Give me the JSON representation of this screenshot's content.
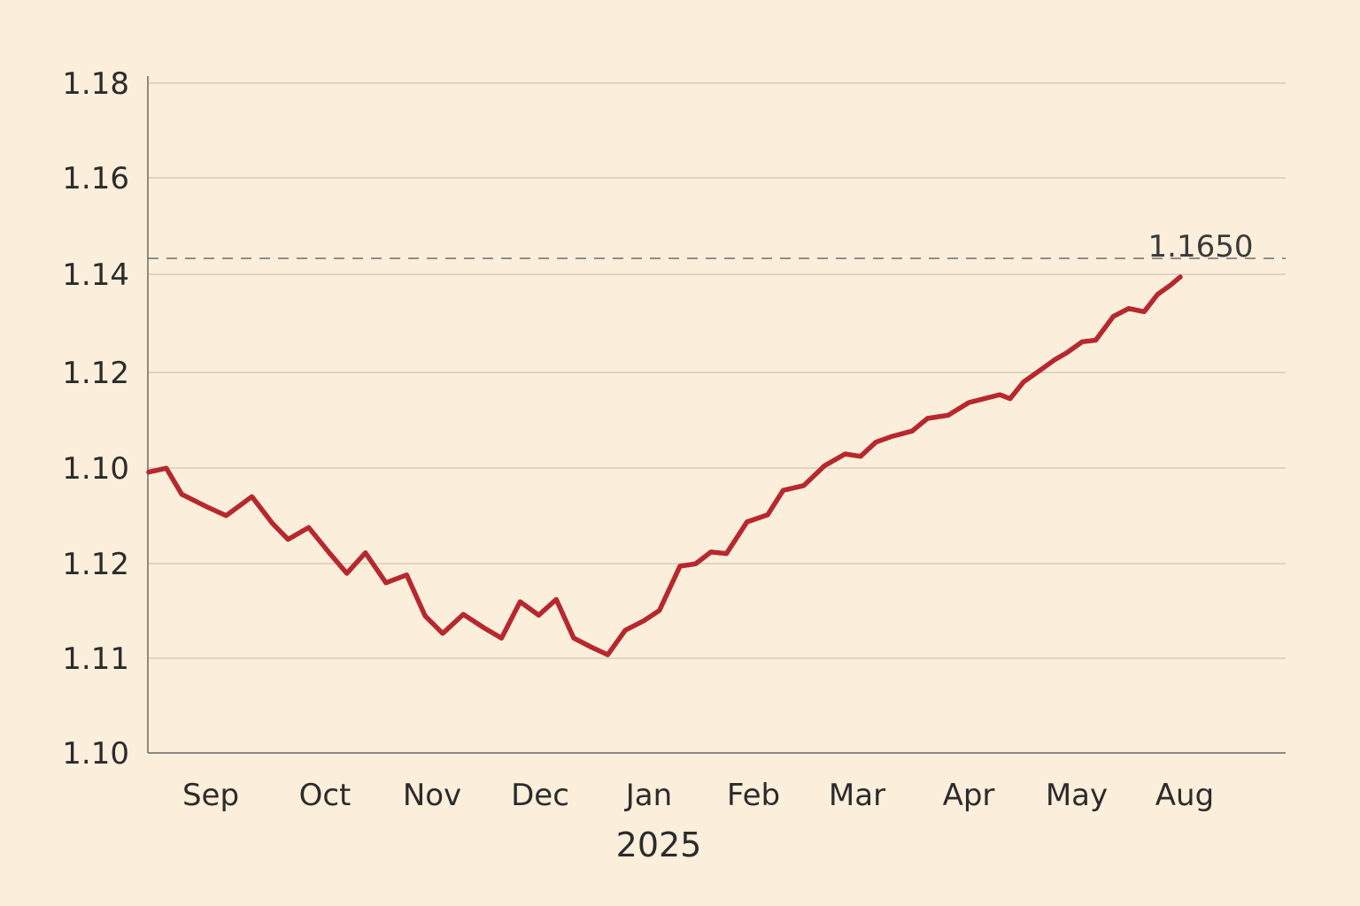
{
  "chart_data": {
    "type": "line",
    "title": "",
    "xlabel": "",
    "ylabel": "",
    "colors": {
      "background": "#fbeedb",
      "line": "#b7282e",
      "grid": "#cfc6b4",
      "axis": "#6b6b6b",
      "reference": "#6e6e6e"
    },
    "grid": true,
    "legend": "none",
    "y_ticks": [
      {
        "label": "1.18"
      },
      {
        "label": "1.16"
      },
      {
        "label": "1.14"
      },
      {
        "label": "1.12"
      },
      {
        "label": "1.10"
      },
      {
        "label": "1.12"
      },
      {
        "label": "1.11"
      },
      {
        "label": "1.10"
      }
    ],
    "x_ticks": [
      {
        "label": "Sep"
      },
      {
        "label": "Oct"
      },
      {
        "label": "Nov"
      },
      {
        "label": "Dec"
      },
      {
        "label": "Jan"
      },
      {
        "label": "Feb"
      },
      {
        "label": "Mar"
      },
      {
        "label": "Apr"
      },
      {
        "label": "May"
      },
      {
        "label": "Aug"
      }
    ],
    "year_label": "2025",
    "reference_line": {
      "style": "dashed",
      "label": "1.1650"
    },
    "series": [
      {
        "x": [
          0,
          0.17,
          0.32,
          0.55,
          0.75,
          1.0,
          1.2,
          1.35,
          1.55,
          1.75,
          1.92,
          2.1,
          2.3,
          2.5,
          2.68,
          2.85,
          3.05,
          3.25,
          3.42,
          3.6,
          3.78,
          3.95,
          4.12,
          4.3,
          4.45,
          4.62,
          4.8,
          4.95,
          5.15,
          5.3,
          5.45,
          5.6,
          5.8,
          6.0,
          6.15,
          6.35,
          6.55,
          6.75,
          6.9,
          7.05,
          7.2,
          7.4,
          7.55,
          7.75,
          7.95,
          8.1,
          8.25,
          8.35,
          8.48,
          8.62,
          8.78,
          8.9,
          9.05,
          9.18,
          9.35,
          9.5,
          9.65,
          9.78,
          9.9,
          10.0
        ],
        "values": [
          1.1338,
          1.1343,
          1.131,
          1.1295,
          1.1283,
          1.1307,
          1.1273,
          1.1253,
          1.1268,
          1.1236,
          1.121,
          1.1236,
          1.1198,
          1.1208,
          1.1156,
          1.1134,
          1.1158,
          1.1141,
          1.1128,
          1.1174,
          1.1157,
          1.1177,
          1.1128,
          1.1116,
          1.1107,
          1.1138,
          1.115,
          1.1163,
          1.1219,
          1.1222,
          1.1237,
          1.1235,
          1.1275,
          1.1284,
          1.1315,
          1.1321,
          1.1346,
          1.1361,
          1.1358,
          1.1376,
          1.1383,
          1.139,
          1.1406,
          1.141,
          1.1426,
          1.1431,
          1.1436,
          1.1431,
          1.1452,
          1.1465,
          1.148,
          1.1489,
          1.1503,
          1.1505,
          1.1535,
          1.1545,
          1.1541,
          1.1563,
          1.1574,
          1.1585
        ]
      }
    ]
  }
}
